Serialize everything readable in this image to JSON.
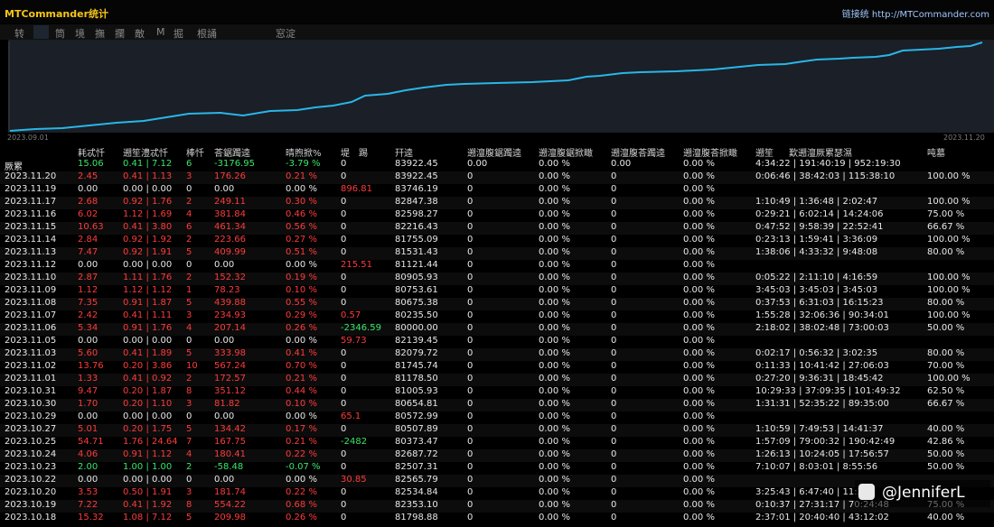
{
  "app": {
    "title": "MTCommander统计",
    "site_label": "链接统",
    "site_url": "http://MTCommander.com"
  },
  "toolbar": [
    "转",
    "",
    "筒",
    "境",
    "撫",
    "攔",
    "敵",
    "M",
    "掘",
    "根誦",
    "窓淀"
  ],
  "chart": {
    "start_date": "2023.09.01",
    "end_date": "2023.11.20",
    "line_color": "#29b6e8"
  },
  "table": {
    "headers": [
      "",
      "耗忒忏",
      "遡笙澧忒忏",
      "棒忏",
      "荅鋸躅逵",
      "晴煦掀%",
      "堤　踢",
      "幵逵",
      "遡澶腹鋸躅逵",
      "遡澶腹鋸掀瞰",
      "遡澶腹荅躅逵",
      "遡澶腹荅掀瞰",
      "遡笙",
      "歎遡澶厥累瑟濕",
      "吨墓"
    ],
    "rows": [
      [
        "厥累",
        "15.06",
        "0.41 | 7.12",
        "6",
        "-3176.95",
        "-3.79 %",
        "0",
        "83922.45",
        "0.00",
        "0.00 %",
        "0.00",
        "0.00 %",
        "4:34:22 | 191:40:19 | 952:19:30",
        ""
      ],
      [
        "2023.11.20",
        "2.45",
        "0.41 | 1.13",
        "3",
        "176.26",
        "0.21 %",
        "0",
        "83922.45",
        "0",
        "0.00 %",
        "0",
        "0.00 %",
        "0:06:46 | 38:42:03 | 115:38:10",
        "100.00 %"
      ],
      [
        "2023.11.19",
        "0.00",
        "0.00 | 0.00",
        "0",
        "0.00",
        "0.00 %",
        "896.81",
        "83746.19",
        "0",
        "0.00 %",
        "0",
        "0.00 %",
        "",
        ""
      ],
      [
        "2023.11.17",
        "2.68",
        "0.92 | 1.76",
        "2",
        "249.11",
        "0.30 %",
        "0",
        "82847.38",
        "0",
        "0.00 %",
        "0",
        "0.00 %",
        "1:10:49 | 1:36:48 | 2:02:47",
        "100.00 %"
      ],
      [
        "2023.11.16",
        "6.02",
        "1.12 | 1.69",
        "4",
        "381.84",
        "0.46 %",
        "0",
        "82598.27",
        "0",
        "0.00 %",
        "0",
        "0.00 %",
        "0:29:21 | 6:02:14 | 14:24:06",
        "75.00 %"
      ],
      [
        "2023.11.15",
        "10.63",
        "0.41 | 3.80",
        "6",
        "461.34",
        "0.56 %",
        "0",
        "82216.43",
        "0",
        "0.00 %",
        "0",
        "0.00 %",
        "0:47:52 | 9:58:39 | 22:52:41",
        "66.67 %"
      ],
      [
        "2023.11.14",
        "2.84",
        "0.92 | 1.92",
        "2",
        "223.66",
        "0.27 %",
        "0",
        "81755.09",
        "0",
        "0.00 %",
        "0",
        "0.00 %",
        "0:23:13 | 1:59:41 | 3:36:09",
        "100.00 %"
      ],
      [
        "2023.11.13",
        "7.47",
        "0.92 | 1.91",
        "5",
        "409.99",
        "0.51 %",
        "0",
        "81531.43",
        "0",
        "0.00 %",
        "0",
        "0.00 %",
        "1:38:06 | 4:33:32 | 9:48:08",
        "80.00 %"
      ],
      [
        "2023.11.12",
        "0.00",
        "0.00 | 0.00",
        "0",
        "0.00",
        "0.00 %",
        "215.51",
        "81121.44",
        "0",
        "0.00 %",
        "0",
        "0.00 %",
        "",
        ""
      ],
      [
        "2023.11.10",
        "2.87",
        "1.11 | 1.76",
        "2",
        "152.32",
        "0.19 %",
        "0",
        "80905.93",
        "0",
        "0.00 %",
        "0",
        "0.00 %",
        "0:05:22 | 2:11:10 | 4:16:59",
        "100.00 %"
      ],
      [
        "2023.11.09",
        "1.12",
        "1.12 | 1.12",
        "1",
        "78.23",
        "0.10 %",
        "0",
        "80753.61",
        "0",
        "0.00 %",
        "0",
        "0.00 %",
        "3:45:03 | 3:45:03 | 3:45:03",
        "100.00 %"
      ],
      [
        "2023.11.08",
        "7.35",
        "0.91 | 1.87",
        "5",
        "439.88",
        "0.55 %",
        "0",
        "80675.38",
        "0",
        "0.00 %",
        "0",
        "0.00 %",
        "0:37:53 | 6:31:03 | 16:15:23",
        "80.00 %"
      ],
      [
        "2023.11.07",
        "2.42",
        "0.41 | 1.11",
        "3",
        "234.93",
        "0.29 %",
        "0.57",
        "80235.50",
        "0",
        "0.00 %",
        "0",
        "0.00 %",
        "1:55:28 | 32:06:36 | 90:34:01",
        "100.00 %"
      ],
      [
        "2023.11.06",
        "5.34",
        "0.91 | 1.76",
        "4",
        "207.14",
        "0.26 %",
        "-2346.59",
        "80000.00",
        "0",
        "0.00 %",
        "0",
        "0.00 %",
        "2:18:02 | 38:02:48 | 73:00:03",
        "50.00 %"
      ],
      [
        "2023.11.05",
        "0.00",
        "0.00 | 0.00",
        "0",
        "0.00",
        "0.00 %",
        "59.73",
        "82139.45",
        "0",
        "0.00 %",
        "0",
        "0.00 %",
        "",
        ""
      ],
      [
        "2023.11.03",
        "5.60",
        "0.41 | 1.89",
        "5",
        "333.98",
        "0.41 %",
        "0",
        "82079.72",
        "0",
        "0.00 %",
        "0",
        "0.00 %",
        "0:02:17 | 0:56:32 | 3:02:35",
        "80.00 %"
      ],
      [
        "2023.11.02",
        "13.76",
        "0.20 | 3.86",
        "10",
        "567.24",
        "0.70 %",
        "0",
        "81745.74",
        "0",
        "0.00 %",
        "0",
        "0.00 %",
        "0:11:33 | 10:41:42 | 27:06:03",
        "70.00 %"
      ],
      [
        "2023.11.01",
        "1.33",
        "0.41 | 0.92",
        "2",
        "172.57",
        "0.21 %",
        "0",
        "81178.50",
        "0",
        "0.00 %",
        "0",
        "0.00 %",
        "0:27:20 | 9:36:31 | 18:45:42",
        "100.00 %"
      ],
      [
        "2023.10.31",
        "9.47",
        "0.20 | 1.87",
        "8",
        "351.12",
        "0.44 %",
        "0",
        "81005.93",
        "0",
        "0.00 %",
        "0",
        "0.00 %",
        "10:29:33 | 37:09:35 | 101:49:32",
        "62.50 %"
      ],
      [
        "2023.10.30",
        "1.70",
        "0.20 | 1.10",
        "3",
        "81.82",
        "0.10 %",
        "0",
        "80654.81",
        "0",
        "0.00 %",
        "0",
        "0.00 %",
        "1:31:31 | 52:35:22 | 89:35:00",
        "66.67 %"
      ],
      [
        "2023.10.29",
        "0.00",
        "0.00 | 0.00",
        "0",
        "0.00",
        "0.00 %",
        "65.1",
        "80572.99",
        "0",
        "0.00 %",
        "0",
        "0.00 %",
        "",
        ""
      ],
      [
        "2023.10.27",
        "5.01",
        "0.20 | 1.75",
        "5",
        "134.42",
        "0.17 %",
        "0",
        "80507.89",
        "0",
        "0.00 %",
        "0",
        "0.00 %",
        "1:10:59 | 7:49:53 | 14:41:37",
        "40.00 %"
      ],
      [
        "2023.10.25",
        "54.71",
        "1.76 | 24.64",
        "7",
        "167.75",
        "0.21 %",
        "-2482",
        "80373.47",
        "0",
        "0.00 %",
        "0",
        "0.00 %",
        "1:57:09 | 79:00:32 | 190:42:49",
        "42.86 %"
      ],
      [
        "2023.10.24",
        "4.06",
        "0.91 | 1.12",
        "4",
        "180.41",
        "0.22 %",
        "0",
        "82687.72",
        "0",
        "0.00 %",
        "0",
        "0.00 %",
        "1:26:13 | 10:24:05 | 17:56:57",
        "50.00 %"
      ],
      [
        "2023.10.23",
        "2.00",
        "1.00 | 1.00",
        "2",
        "-58.48",
        "-0.07 %",
        "0",
        "82507.31",
        "0",
        "0.00 %",
        "0",
        "0.00 %",
        "7:10:07 | 8:03:01 | 8:55:56",
        "50.00 %"
      ],
      [
        "2023.10.22",
        "0.00",
        "0.00 | 0.00",
        "0",
        "0.00",
        "0.00 %",
        "30.85",
        "82565.79",
        "0",
        "0.00 %",
        "0",
        "0.00 %",
        "",
        ""
      ],
      [
        "2023.10.20",
        "3.53",
        "0.50 | 1.91",
        "3",
        "181.74",
        "0.22 %",
        "0",
        "82534.84",
        "0",
        "0.00 %",
        "0",
        "0.00 %",
        "3:25:43 | 6:47:40 | 11:23",
        ""
      ],
      [
        "2023.10.19",
        "7.22",
        "0.41 | 1.92",
        "8",
        "554.22",
        "0.68 %",
        "0",
        "82353.10",
        "0",
        "0.00 %",
        "0",
        "0.00 %",
        "0:10:37 | 27:31:17 | 70:24:48",
        "75.00 %"
      ],
      [
        "2023.10.18",
        "15.32",
        "1.08 | 7.12",
        "5",
        "209.98",
        "0.26 %",
        "0",
        "81798.88",
        "0",
        "0.00 %",
        "0",
        "0.00 %",
        "2:37:01 | 20:40:40 | 43:12:02",
        "40.00 %"
      ]
    ],
    "row_colors": [
      "pos",
      "neg",
      "wht",
      "neg",
      "neg",
      "neg",
      "neg",
      "neg",
      "wht",
      "neg",
      "neg",
      "neg",
      "neg",
      "neg",
      "wht",
      "neg",
      "neg",
      "neg",
      "neg",
      "neg",
      "wht",
      "neg",
      "neg",
      "neg",
      "pos",
      "wht",
      "neg",
      "neg",
      "neg"
    ]
  },
  "watermark": {
    "text": "@JenniferL",
    "icon": "zhihu-icon"
  }
}
